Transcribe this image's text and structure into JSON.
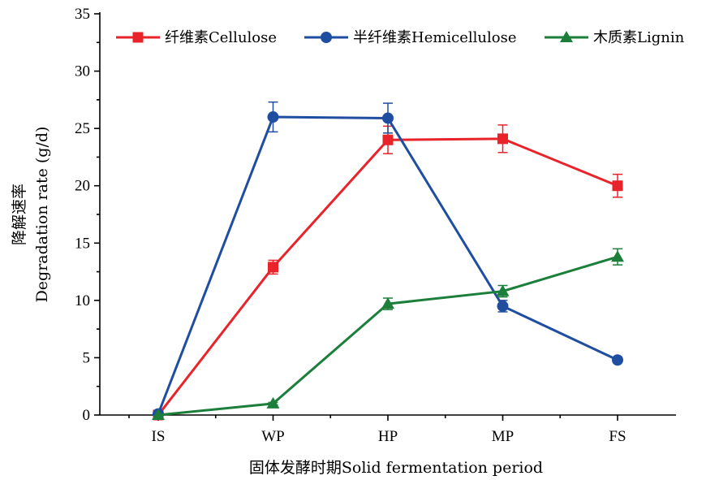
{
  "chart_data": {
    "type": "line",
    "categories": [
      "IS",
      "WP",
      "HP",
      "MP",
      "FS"
    ],
    "xlabel": "固体发酵时期Solid fermentation period",
    "ylabel_cn": "降解速率",
    "ylabel_en": "Degradation rate (g/d)",
    "ylim": [
      0,
      35
    ],
    "yticks": [
      0,
      5,
      10,
      15,
      20,
      25,
      30,
      35
    ],
    "grid": false,
    "legend_position": "top",
    "series": [
      {
        "name": "纤维素Cellulose",
        "color": "#e8232a",
        "marker": "square",
        "values": [
          0,
          12.9,
          24.0,
          24.1,
          20.0
        ],
        "errors": [
          0,
          0.6,
          1.2,
          1.2,
          1.0
        ]
      },
      {
        "name": "半纤维素Hemicellulose",
        "color": "#1f4ea1",
        "marker": "circle",
        "values": [
          0.1,
          26.0,
          25.9,
          9.5,
          4.8
        ],
        "errors": [
          0,
          1.3,
          1.3,
          0.5,
          0.2
        ]
      },
      {
        "name": "木质素Lignin",
        "color": "#1b7f3b",
        "marker": "triangle",
        "values": [
          0,
          1.0,
          9.7,
          10.8,
          13.8
        ],
        "errors": [
          0,
          0.1,
          0.5,
          0.5,
          0.7
        ]
      }
    ]
  }
}
